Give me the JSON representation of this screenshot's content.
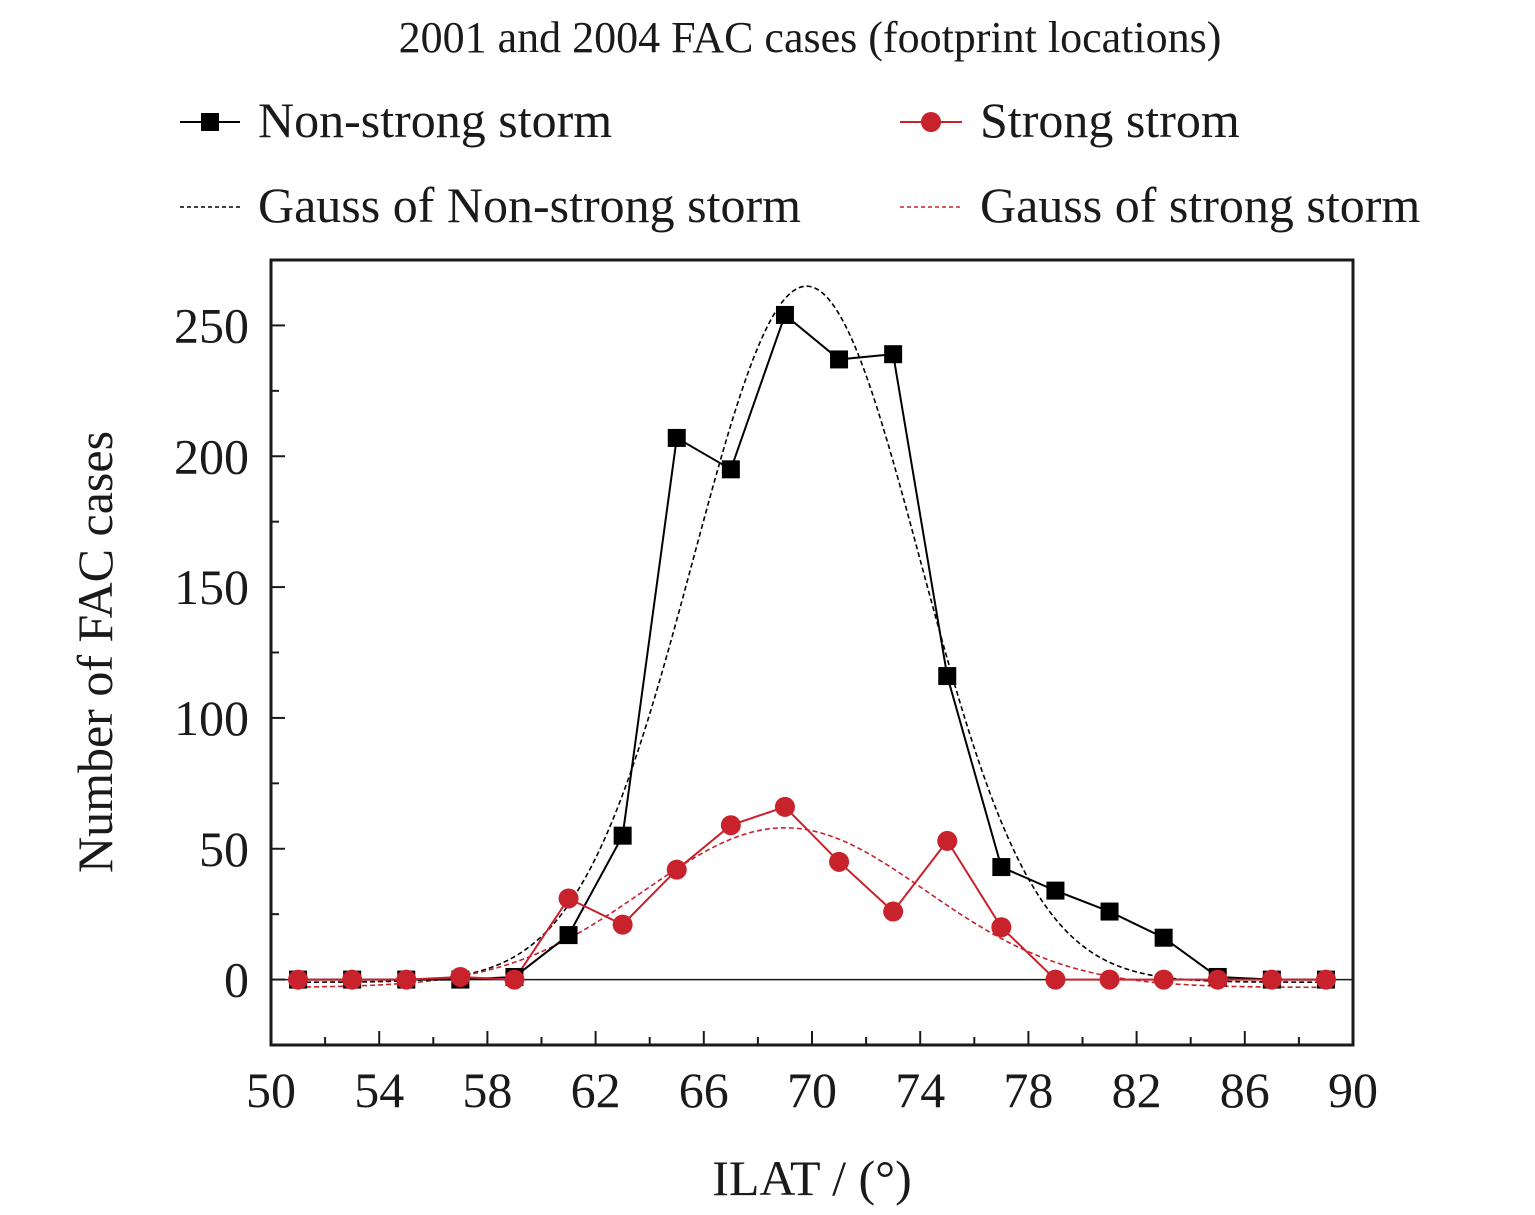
{
  "chart_data": {
    "type": "line",
    "title": "2001 and 2004 FAC cases (footprint locations)",
    "xlabel": "ILAT / (°)",
    "ylabel": "Number of FAC cases",
    "xlim": [
      50,
      90
    ],
    "ylim": [
      -25,
      275
    ],
    "x_ticks": [
      50,
      54,
      58,
      62,
      66,
      70,
      74,
      78,
      82,
      86,
      90
    ],
    "y_ticks": [
      0,
      50,
      100,
      150,
      200,
      250
    ],
    "x_tick_labels": [
      "50",
      "54",
      "58",
      "62",
      "66",
      "70",
      "74",
      "78",
      "82",
      "86",
      "90"
    ],
    "y_tick_labels": [
      "0",
      "50",
      "100",
      "150",
      "200",
      "250"
    ],
    "grid": false,
    "legend_position": "top",
    "x": [
      51,
      53,
      55,
      57,
      59,
      61,
      63,
      65,
      67,
      69,
      71,
      73,
      75,
      77,
      79,
      81,
      83,
      85,
      87,
      89
    ],
    "series": [
      {
        "name": "Non-strong storm",
        "color": "#000000",
        "marker": "square",
        "line_style": "solid",
        "values": [
          0,
          0,
          0,
          0,
          1,
          17,
          55,
          207,
          195,
          254,
          237,
          239,
          116,
          43,
          34,
          26,
          16,
          1,
          0,
          0
        ]
      },
      {
        "name": "Strong strom",
        "color": "#c8222c",
        "marker": "circle",
        "line_style": "solid",
        "values": [
          0,
          0,
          0,
          1,
          0,
          31,
          21,
          42,
          59,
          66,
          45,
          26,
          53,
          20,
          0,
          0,
          0,
          0,
          0,
          0
        ]
      },
      {
        "name": "Gauss of Non-strong storm",
        "color": "#000000",
        "line_style": "dashed",
        "fit": {
          "baseline": -1,
          "amplitude": 266,
          "center": 69.8,
          "sigma": 4.2
        }
      },
      {
        "name": "Gauss of strong storm",
        "color": "#c8222c",
        "line_style": "dashed",
        "fit": {
          "baseline": -3,
          "amplitude": 61,
          "center": 69.0,
          "sigma": 5.2
        }
      }
    ]
  }
}
